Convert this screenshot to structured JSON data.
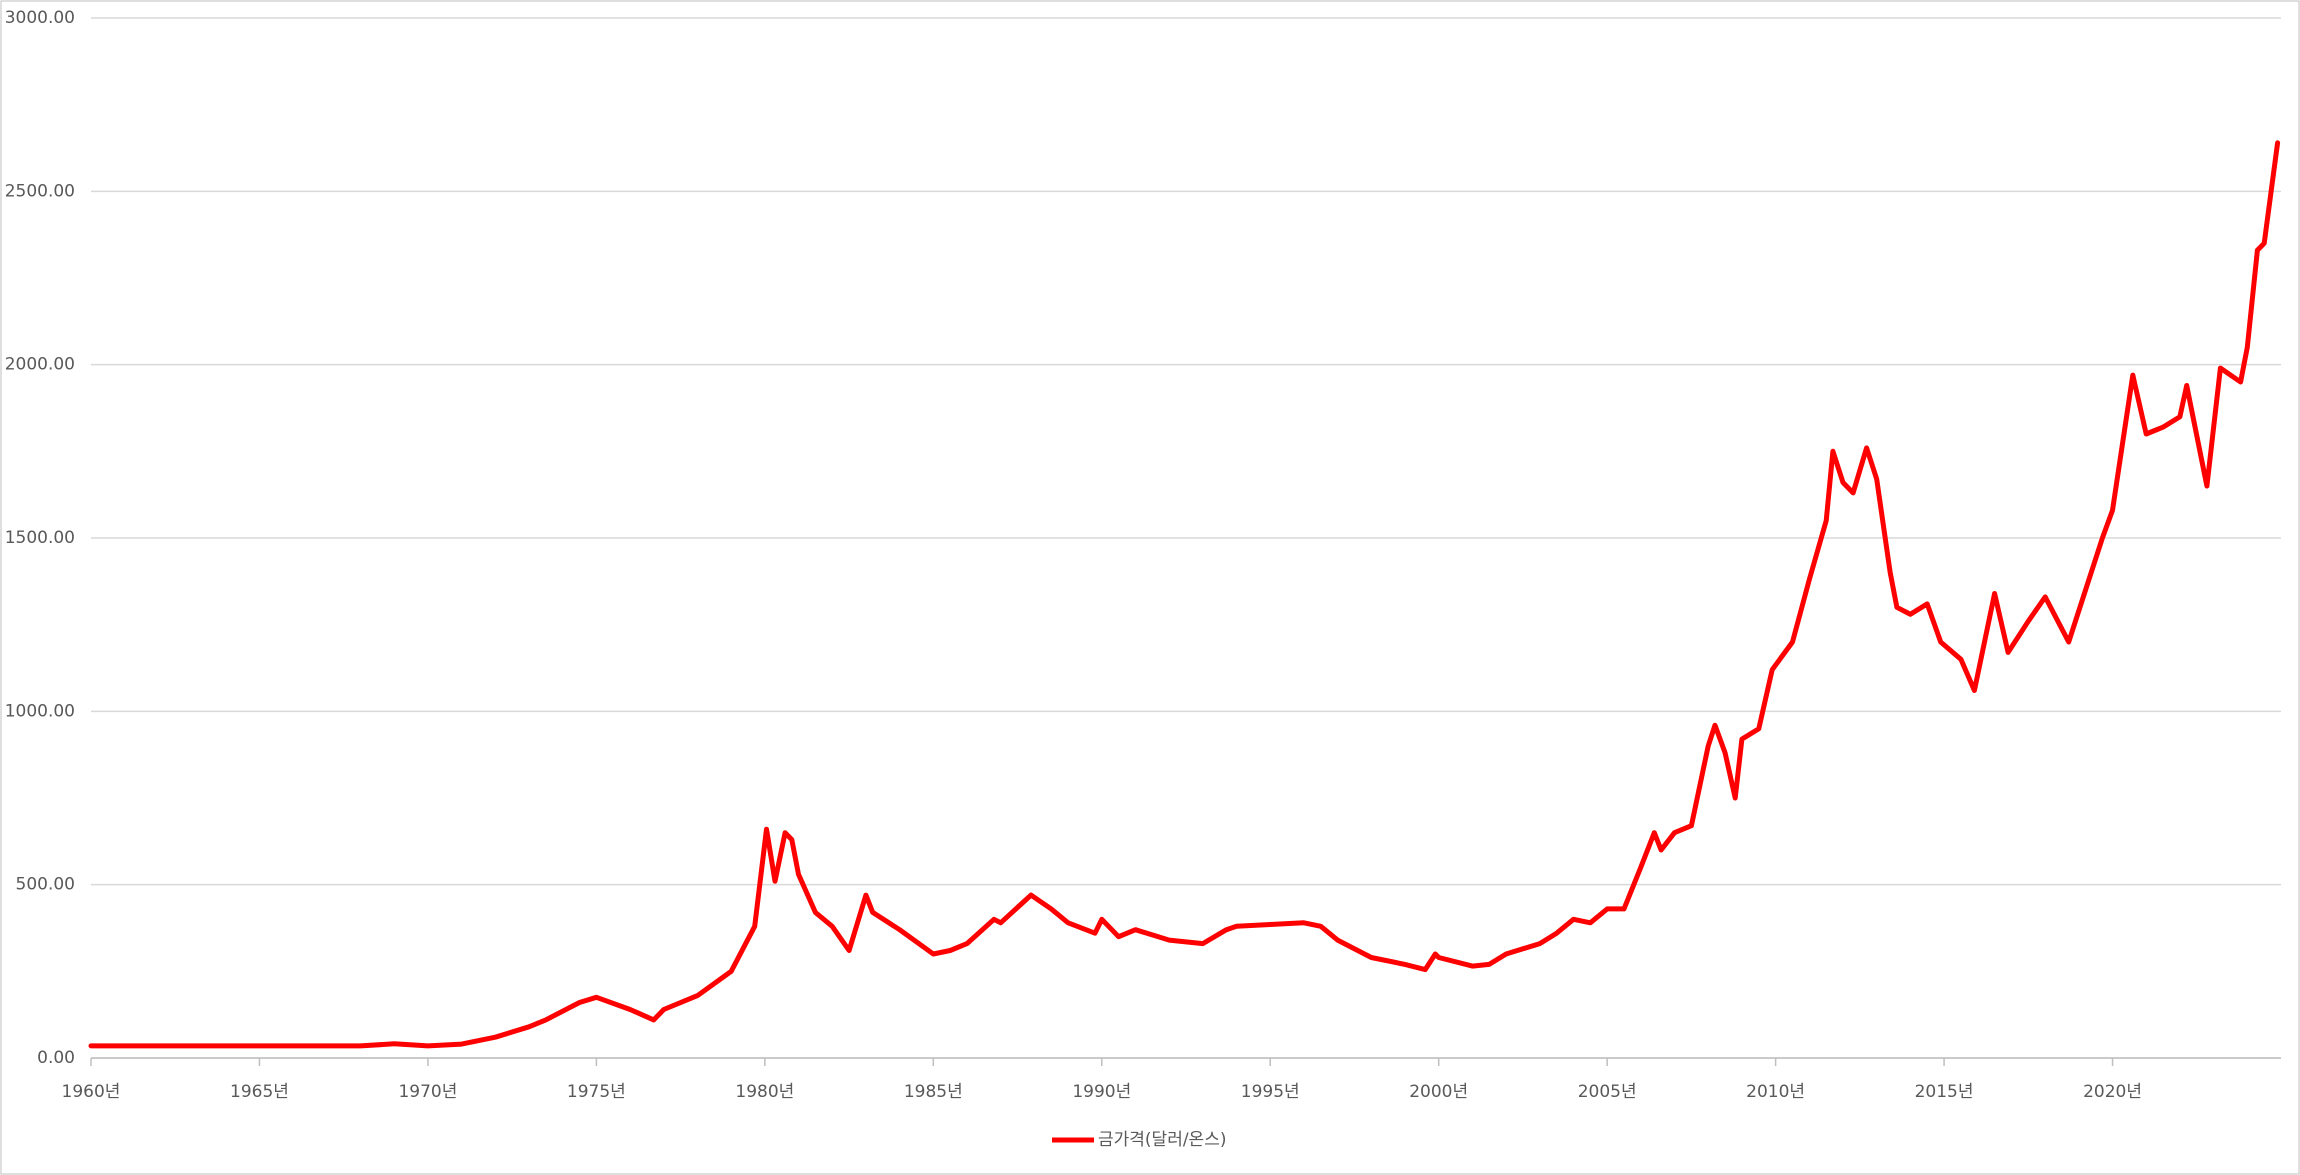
{
  "chart_data": {
    "type": "line",
    "x": [
      1960,
      1968,
      1969,
      1970,
      1971,
      1972,
      1973,
      1973.5,
      1974.5,
      1975,
      1976,
      1976.7,
      1977,
      1978,
      1979,
      1979.7,
      1980.05,
      1980.3,
      1980.6,
      1980.8,
      1981,
      1981.5,
      1982,
      1982.5,
      1983,
      1983.2,
      1984,
      1985,
      1985.5,
      1986,
      1986.8,
      1987,
      1987.9,
      1988.5,
      1989,
      1989.8,
      1990,
      1990.5,
      1991,
      1992,
      1993,
      1993.7,
      1994,
      1995,
      1996,
      1996.5,
      1997,
      1998,
      1999,
      1999.6,
      1999.9,
      2000,
      2001,
      2001.5,
      2002,
      2003,
      2003.5,
      2004,
      2004.5,
      2005,
      2005.5,
      2006,
      2006.4,
      2006.6,
      2007,
      2007.5,
      2008,
      2008.2,
      2008.5,
      2008.8,
      2009,
      2009.5,
      2009.9,
      2010.5,
      2011,
      2011.5,
      2011.7,
      2012,
      2012.3,
      2012.7,
      2013,
      2013.4,
      2013.6,
      2014,
      2014.5,
      2014.9,
      2015.5,
      2015.9,
      2016.5,
      2016.9,
      2017.5,
      2018,
      2018.7,
      2019,
      2019.7,
      2020,
      2020.6,
      2021,
      2021.5,
      2022,
      2022.2,
      2022.8,
      2023.2,
      2023.8,
      2024,
      2024.3,
      2024.5,
      2024.9
    ],
    "series": [
      {
        "name": "금가격(달러/온스)",
        "color": "#ff0000",
        "values": [
          35,
          35,
          41,
          35,
          40,
          60,
          90,
          110,
          160,
          175,
          140,
          110,
          140,
          180,
          250,
          380,
          660,
          510,
          650,
          630,
          530,
          420,
          380,
          310,
          470,
          420,
          370,
          300,
          310,
          330,
          400,
          390,
          470,
          430,
          390,
          360,
          400,
          350,
          370,
          340,
          330,
          370,
          380,
          385,
          390,
          380,
          340,
          290,
          270,
          255,
          300,
          290,
          265,
          270,
          300,
          330,
          360,
          400,
          390,
          430,
          430,
          550,
          650,
          600,
          650,
          670,
          900,
          960,
          880,
          750,
          920,
          950,
          1120,
          1200,
          1380,
          1550,
          1750,
          1660,
          1630,
          1760,
          1670,
          1400,
          1300,
          1280,
          1310,
          1200,
          1150,
          1060,
          1340,
          1170,
          1260,
          1330,
          1200,
          1290,
          1500,
          1580,
          1970,
          1800,
          1820,
          1850,
          1940,
          1650,
          1990,
          1950,
          2050,
          2330,
          2350,
          2640
        ]
      }
    ],
    "xlim": [
      1960,
      2025
    ],
    "xticks": [
      {
        "value": 1960,
        "label": "1960년"
      },
      {
        "value": 1965,
        "label": "1965년"
      },
      {
        "value": 1970,
        "label": "1970년"
      },
      {
        "value": 1975,
        "label": "1975년"
      },
      {
        "value": 1980,
        "label": "1980년"
      },
      {
        "value": 1985,
        "label": "1985년"
      },
      {
        "value": 1990,
        "label": "1990년"
      },
      {
        "value": 1995,
        "label": "1995년"
      },
      {
        "value": 2000,
        "label": "2000년"
      },
      {
        "value": 2005,
        "label": "2005년"
      },
      {
        "value": 2010,
        "label": "2010년"
      },
      {
        "value": 2015,
        "label": "2015년"
      },
      {
        "value": 2020,
        "label": "2020년"
      }
    ],
    "ylim": [
      0,
      3000
    ],
    "yticks": [
      {
        "value": 0,
        "label": "0.00"
      },
      {
        "value": 500,
        "label": "500.00"
      },
      {
        "value": 1000,
        "label": "1000.00"
      },
      {
        "value": 1500,
        "label": "1500.00"
      },
      {
        "value": 2000,
        "label": "2000.00"
      },
      {
        "value": 2500,
        "label": "2500.00"
      },
      {
        "value": 3000,
        "label": "3000.00"
      }
    ],
    "grid": true,
    "legend": "bottom"
  }
}
